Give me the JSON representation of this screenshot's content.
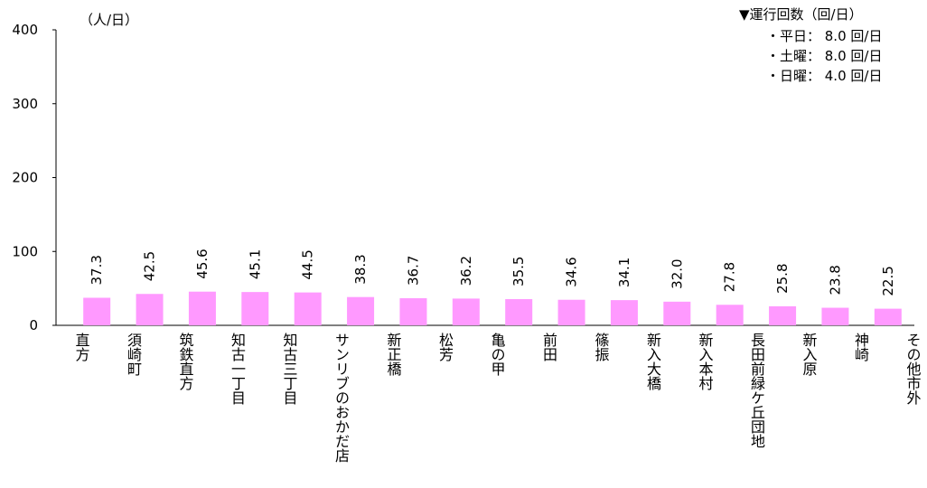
{
  "chart_data": {
    "type": "bar",
    "unit_label": "（人/日）",
    "annotations": [
      "▼運行回数（回/日）",
      "・平日： 8.0 回/日",
      "・土曜： 8.0 回/日",
      "・日曜： 4.0 回/日"
    ],
    "categories": [
      "直方",
      "須崎町",
      "筑鉄直方",
      "知古一丁目",
      "知古三丁目",
      "サンリブのおかだ店",
      "新正橋",
      "松芳",
      "亀の甲",
      "前田",
      "篠振",
      "新入大橋",
      "新入本村",
      "長田前緑ケ丘団地",
      "新入原",
      "神崎",
      "その他市外"
    ],
    "values": [
      37.3,
      42.5,
      45.6,
      45.1,
      44.5,
      38.3,
      36.7,
      36.2,
      35.5,
      34.6,
      34.1,
      32.0,
      27.8,
      25.8,
      23.8,
      22.5,
      null
    ],
    "value_labels": [
      "37.3",
      "42.5",
      "45.6",
      "45.1",
      "44.5",
      "38.3",
      "36.7",
      "36.2",
      "35.5",
      "34.6",
      "34.1",
      "32.0",
      "27.8",
      "25.8",
      "23.8",
      "22.5",
      null
    ],
    "color": "#ff99ff",
    "ylim": [
      0,
      400
    ],
    "yticks": [
      0,
      100,
      200,
      300,
      400
    ],
    "grid": false
  }
}
